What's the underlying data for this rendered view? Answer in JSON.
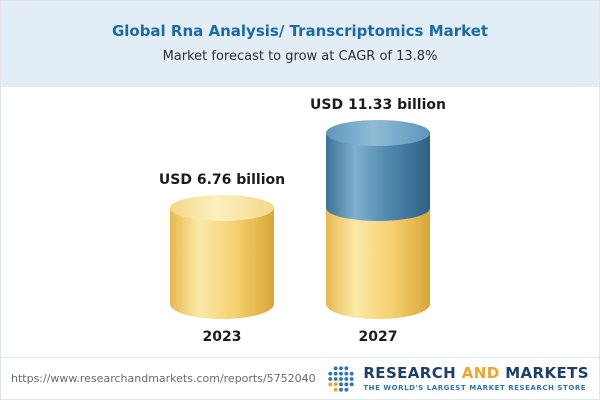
{
  "header": {
    "title": "Global Rna Analysis/ Transcriptomics Market",
    "subtitle": "Market forecast to grow at CAGR of 13.8%"
  },
  "chart_data": {
    "type": "bar",
    "subtype": "3d-cylinder-stacked",
    "title": "Global Rna Analysis/ Transcriptomics Market",
    "subtitle": "Market forecast to grow at CAGR of 13.8%",
    "cagr_percent": 13.8,
    "unit": "USD billion",
    "categories": [
      "2023",
      "2027"
    ],
    "values": [
      6.76,
      11.33
    ],
    "ylim": [
      0,
      11.33
    ],
    "legend": "none",
    "grid": false,
    "bars": [
      {
        "category": "2023",
        "label": "USD 6.76 billion",
        "total": 6.76,
        "segments": [
          {
            "name": "market-2023",
            "value": 6.76,
            "color": "#f5d272"
          }
        ]
      },
      {
        "category": "2027",
        "label": "USD 11.33 billion",
        "total": 11.33,
        "segments": [
          {
            "name": "base-2023-level",
            "value": 6.76,
            "color": "#f5d272"
          },
          {
            "name": "growth-to-2027",
            "value": 4.57,
            "color": "#4d86ac"
          }
        ]
      }
    ]
  },
  "footer": {
    "url": "https://www.researchandmarkets.com/reports/5752040",
    "logo": {
      "word_research": "RESEARCH",
      "word_and": "AND",
      "word_markets": "MARKETS",
      "tagline": "THE WORLD'S LARGEST MARKET RESEARCH STORE"
    }
  },
  "colors": {
    "title-blue": "#1a6ba6",
    "subtitle-text": "#2f2f2f",
    "header-bg": "#e2edf5",
    "yellow-edge": "#e7b94f",
    "yellow-light": "#fbe9a8",
    "yellow-mid": "#f5d272",
    "yellow-dark": "#d9a637",
    "yellow-cap-light": "#fcf0c2",
    "yellow-cap-mid": "#f2d887",
    "blue-edge": "#3d7298",
    "blue-light": "#7fb0cd",
    "blue-mid": "#4d86ac",
    "blue-dark": "#2e6187",
    "blue-cap-light": "#8fbbd6",
    "blue-cap-mid": "#5f97bb",
    "label-text": "#1c1c1c",
    "url-text": "#6b6b6b",
    "logo-navy": "#1b3f6e",
    "logo-orange": "#f0a32f",
    "tagline-blue": "#2e75b6",
    "border": "#e0e5ea"
  }
}
